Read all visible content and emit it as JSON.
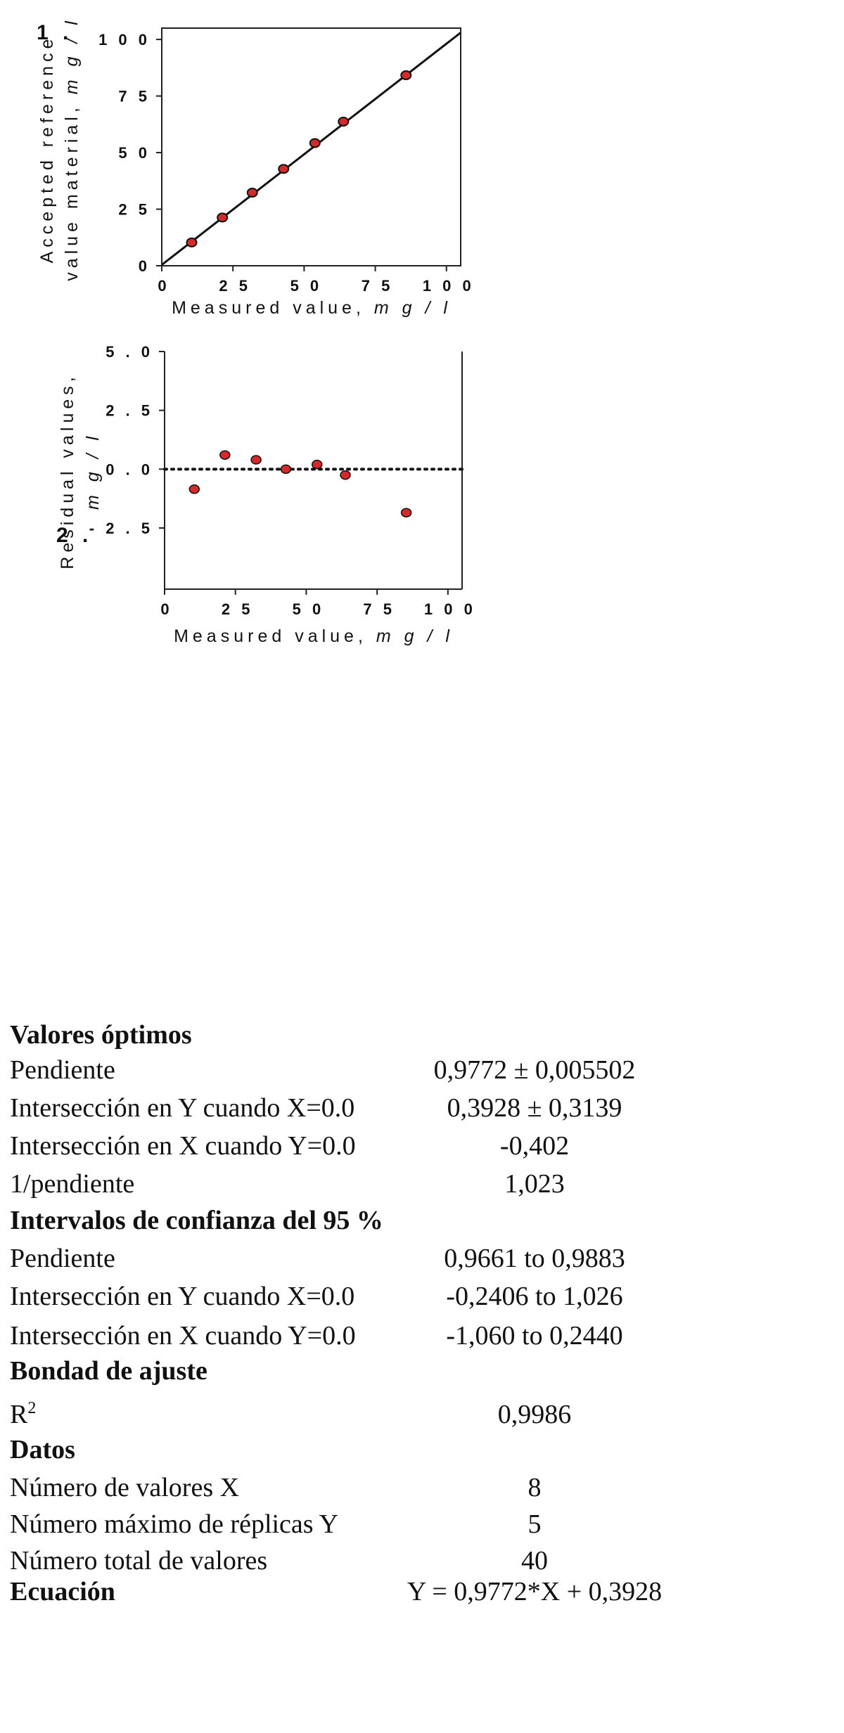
{
  "panel1_label": "1 .",
  "panel2_label": "2 .",
  "chart_data": [
    {
      "type": "scatter",
      "title": "",
      "xlabel": "Measured value,",
      "xlabel_unit": "m g / l",
      "ylabel_line1": "Accepted reference",
      "ylabel_line2": "value material,",
      "ylabel_unit": "m g / l",
      "xlim": [
        0,
        105
      ],
      "ylim": [
        0,
        105
      ],
      "xticks": [
        "0",
        "2 5",
        "5 0",
        "7 5",
        "1 0 0"
      ],
      "yticks": [
        "0",
        "2 5",
        "5 0",
        "7 5",
        "1 0 0"
      ],
      "series": [
        {
          "x": [
            10.5,
            21.3,
            31.8,
            42.8,
            53.8,
            63.8,
            85.8
          ],
          "y": [
            10.3,
            21.3,
            32.3,
            42.8,
            54.2,
            63.7,
            84.2
          ]
        }
      ],
      "fit_line": {
        "slope": 0.9772,
        "intercept": 0.3928
      },
      "marker_color": "#d42a2a"
    },
    {
      "type": "scatter",
      "title": "",
      "xlabel": "Measured value,",
      "xlabel_unit": "m g / l",
      "ylabel_line1": "Residual values,",
      "ylabel_unit": "m g / l",
      "xlim": [
        0,
        105
      ],
      "ylim": [
        -5.0,
        5.0
      ],
      "xticks": [
        "0",
        "2 5",
        "5 0",
        "7 5",
        "1 0 0"
      ],
      "yticks": [
        "5 . 0",
        "2 . 5",
        "0 . 0",
        "- 2 . 5"
      ],
      "series": [
        {
          "x": [
            10.5,
            21.3,
            32.3,
            42.8,
            53.8,
            63.8,
            85.3
          ],
          "y": [
            -0.85,
            0.6,
            0.4,
            0.0,
            0.2,
            -0.25,
            -1.85
          ]
        }
      ],
      "zero_line": "dotted",
      "marker_color": "#d42a2a"
    }
  ],
  "stats": [
    {
      "key": "Valores óptimos",
      "value": "",
      "head": true
    },
    {
      "key": "Pendiente",
      "value": "0,9772 ± 0,005502"
    },
    {
      "key": "Intersección en Y cuando X=0.0",
      "value": "0,3928 ± 0,3139"
    },
    {
      "key": "Intersección en X cuando Y=0.0",
      "value": "-0,402"
    },
    {
      "key": "1/pendiente",
      "value": "1,023"
    },
    {
      "key": "Intervalos de confianza del 95 %",
      "value": "",
      "head": true
    },
    {
      "key": "Pendiente",
      "value": "0,9661 to 0,9883"
    },
    {
      "key": "Intersección en Y cuando X=0.0",
      "value": "-0,2406 to 1,026"
    },
    {
      "key": "Intersección en X cuando Y=0.0",
      "value": "-1,060 to 0,2440"
    },
    {
      "key": "Bondad de ajuste",
      "value": "",
      "head": true
    },
    {
      "key": "R",
      "key_sup": "2",
      "value": "0,9986"
    },
    {
      "key": "Datos",
      "value": "",
      "head": true
    },
    {
      "key": "Número de valores X",
      "value": "8"
    },
    {
      "key": "Número máximo de réplicas Y",
      "value": "5"
    },
    {
      "key": "Número total de valores",
      "value": "40"
    },
    {
      "key": "Ecuación",
      "value": "Y = 0,9772*X + 0,3928",
      "head": true
    }
  ]
}
